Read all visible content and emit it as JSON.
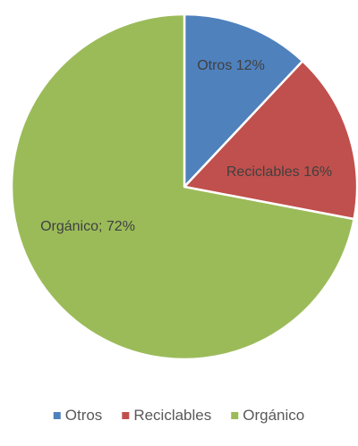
{
  "chart_data": {
    "type": "pie",
    "categories": [
      "Otros",
      "Reciclables",
      "Orgánico"
    ],
    "values": [
      12,
      16,
      72
    ],
    "data_labels": [
      "Otros 12%",
      "Reciclables 16%",
      "Orgánico; 72%"
    ],
    "colors": [
      "#4f81bd",
      "#c0504d",
      "#9bbb59"
    ],
    "start_angle_deg": 0,
    "direction": "clockwise",
    "legend": {
      "position": "bottom",
      "entries": [
        "Otros",
        "Reciclables",
        "Orgánico"
      ]
    }
  }
}
